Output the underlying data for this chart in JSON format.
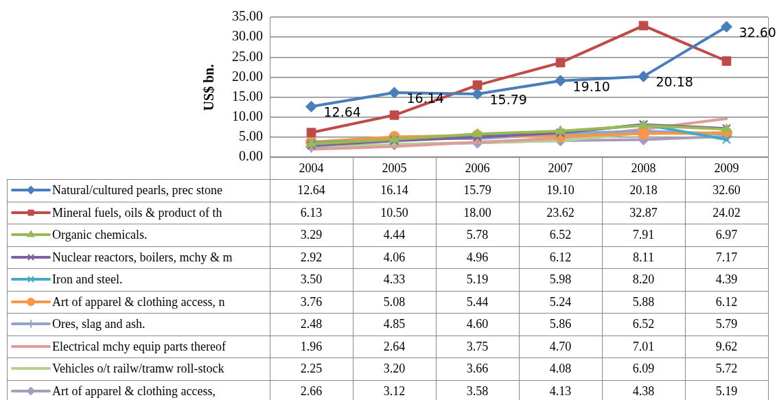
{
  "chart_data": {
    "type": "line",
    "ylabel": "US$ bn.",
    "categories": [
      "2004",
      "2005",
      "2006",
      "2007",
      "2008",
      "2009"
    ],
    "ylim": [
      0,
      35
    ],
    "yticks": [
      {
        "value": 0,
        "label": "0.00"
      },
      {
        "value": 5,
        "label": "5.00"
      },
      {
        "value": 10,
        "label": "10.00"
      },
      {
        "value": 15,
        "label": "15.00"
      },
      {
        "value": 20,
        "label": "20.00"
      },
      {
        "value": 25,
        "label": "25.00"
      },
      {
        "value": 30,
        "label": "30.00"
      },
      {
        "value": 35,
        "label": "35.00"
      }
    ],
    "grid": "y",
    "legend": "bottom",
    "line_style": "solid",
    "annotations": [
      {
        "text": "12.64",
        "x": "2004",
        "y": 12.64
      },
      {
        "text": "16.14",
        "x": "2005",
        "y": 16.14
      },
      {
        "text": "15.79",
        "x": "2006",
        "y": 15.79
      },
      {
        "text": "19.10",
        "x": "2007",
        "y": 19.1
      },
      {
        "text": "20.18",
        "x": "2008",
        "y": 20.18
      },
      {
        "text": "32.60",
        "x": "2009",
        "y": 32.6
      }
    ],
    "series": [
      {
        "name": "Natural/cultured pearls, prec stone",
        "color": "#4a7ebb",
        "marker": "diamond",
        "values": [
          12.64,
          16.14,
          15.79,
          19.1,
          20.18,
          32.6
        ],
        "value_labels": [
          "12.64",
          "16.14",
          "15.79",
          "19.10",
          "20.18",
          "32.60"
        ]
      },
      {
        "name": "Mineral fuels, oils & product of th",
        "color": "#be4b48",
        "marker": "square",
        "values": [
          6.13,
          10.5,
          18.0,
          23.62,
          32.87,
          24.02
        ],
        "value_labels": [
          "6.13",
          "10.50",
          "18.00",
          "23.62",
          "32.87",
          "24.02"
        ]
      },
      {
        "name": "Organic chemicals.",
        "color": "#98b954",
        "marker": "triangle",
        "values": [
          3.29,
          4.44,
          5.78,
          6.52,
          7.91,
          6.97
        ],
        "value_labels": [
          "3.29",
          "4.44",
          "5.78",
          "6.52",
          "7.91",
          "6.97"
        ]
      },
      {
        "name": "Nuclear reactors, boilers, mchy & m",
        "color": "#7d60a0",
        "marker": "cross",
        "values": [
          2.92,
          4.06,
          4.96,
          6.12,
          8.11,
          7.17
        ],
        "value_labels": [
          "2.92",
          "4.06",
          "4.96",
          "6.12",
          "8.11",
          "7.17"
        ]
      },
      {
        "name": "Iron and steel.",
        "color": "#46aac5",
        "marker": "cross",
        "values": [
          3.5,
          4.33,
          5.19,
          5.98,
          8.2,
          4.39
        ],
        "value_labels": [
          "3.50",
          "4.33",
          "5.19",
          "5.98",
          "8.20",
          "4.39"
        ]
      },
      {
        "name": "Art of apparel & clothing access, n",
        "color": "#f79646",
        "marker": "circle",
        "values": [
          3.76,
          5.08,
          5.44,
          5.24,
          5.88,
          6.12
        ],
        "value_labels": [
          "3.76",
          "5.08",
          "5.44",
          "5.24",
          "5.88",
          "6.12"
        ]
      },
      {
        "name": "Ores, slag and ash.",
        "color": "#8ea5cb",
        "marker": "plus",
        "values": [
          2.48,
          4.85,
          4.6,
          5.86,
          6.52,
          5.79
        ],
        "value_labels": [
          "2.48",
          "4.85",
          "4.60",
          "5.86",
          "6.52",
          "5.79"
        ]
      },
      {
        "name": "Electrical mchy equip parts thereof",
        "color": "#dd9c9a",
        "marker": "none",
        "values": [
          1.96,
          2.64,
          3.75,
          4.7,
          7.01,
          9.62
        ],
        "value_labels": [
          "1.96",
          "2.64",
          "3.75",
          "4.70",
          "7.01",
          "9.62"
        ]
      },
      {
        "name": "Vehicles o/t railw/tramw roll-stock",
        "color": "#b6d08f",
        "marker": "none",
        "values": [
          2.25,
          3.2,
          3.66,
          4.08,
          6.09,
          5.72
        ],
        "value_labels": [
          "2.25",
          "3.20",
          "3.66",
          "4.08",
          "6.09",
          "5.72"
        ]
      },
      {
        "name": "Art of apparel & clothing access,",
        "color": "#a99bbd",
        "marker": "diamond",
        "values": [
          2.66,
          3.12,
          3.58,
          4.13,
          4.38,
          5.19
        ],
        "value_labels": [
          "2.66",
          "3.12",
          "3.58",
          "4.13",
          "4.38",
          "5.19"
        ]
      }
    ]
  }
}
